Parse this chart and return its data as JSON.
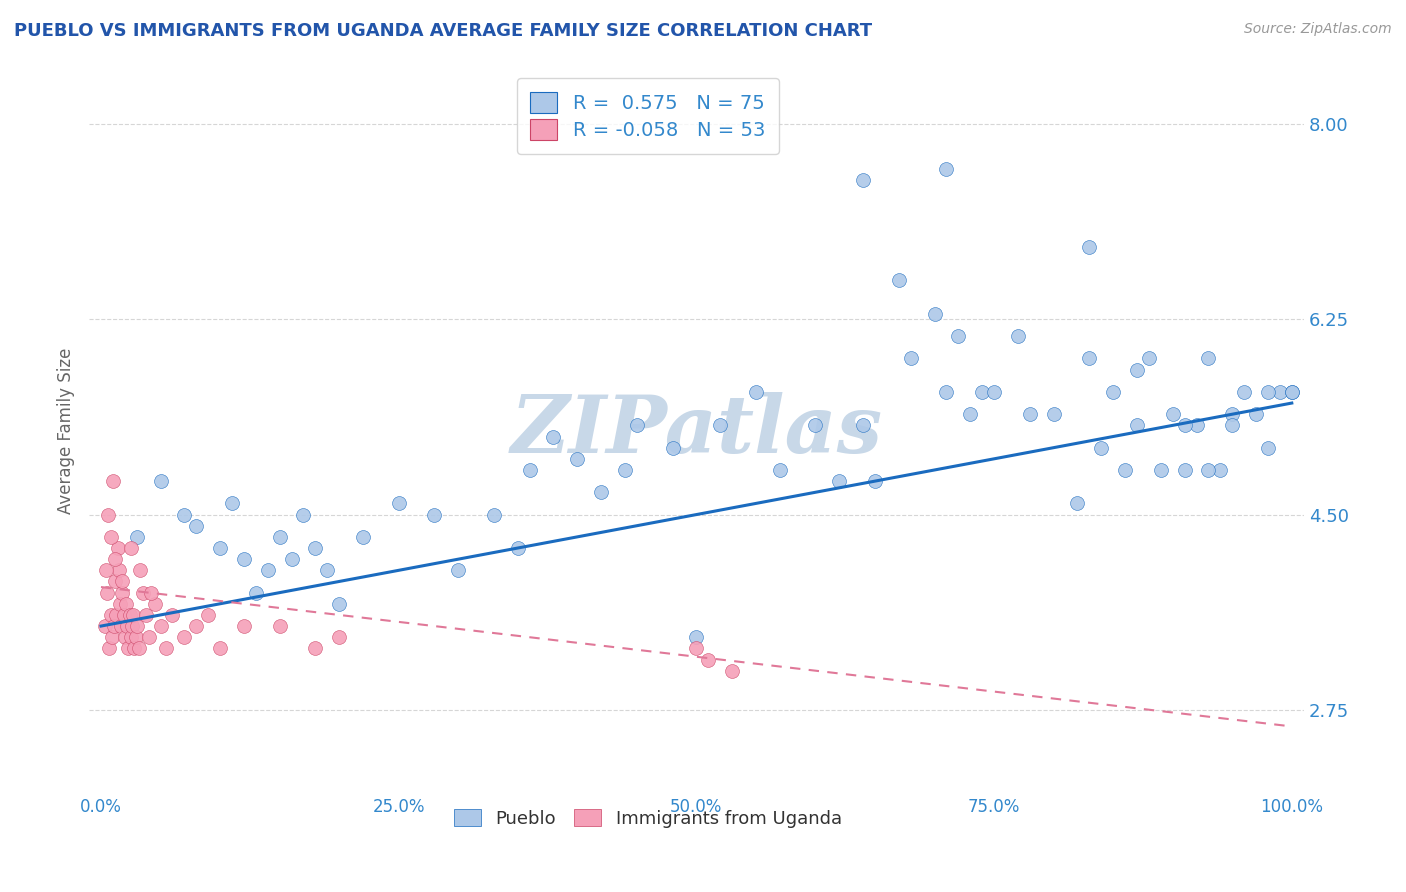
{
  "title": "PUEBLO VS IMMIGRANTS FROM UGANDA AVERAGE FAMILY SIZE CORRELATION CHART",
  "source": "Source: ZipAtlas.com",
  "ylabel": "Average Family Size",
  "xlim": [
    -1,
    101
  ],
  "ylim": [
    2.0,
    8.5
  ],
  "yticks": [
    2.75,
    4.5,
    6.25,
    8.0
  ],
  "ytick_labels": [
    "2.75",
    "4.50",
    "6.25",
    "8.00"
  ],
  "xticks": [
    0,
    25,
    50,
    75,
    100
  ],
  "xtick_labels": [
    "0.0%",
    "25.0%",
    "50.0%",
    "75.0%",
    "100.0%"
  ],
  "pueblo_color": "#adc8e8",
  "uganda_color": "#f5a0b8",
  "trend1_color": "#1a6bbf",
  "trend2_color": "#e07898",
  "background_color": "#ffffff",
  "watermark": "ZIPatlas",
  "watermark_color": "#c8d8e8",
  "title_color": "#2255aa",
  "axis_label_color": "#666666",
  "tick_color": "#3388cc",
  "source_color": "#999999",
  "pueblo_x": [
    3,
    5,
    7,
    8,
    10,
    11,
    12,
    13,
    14,
    15,
    16,
    17,
    18,
    19,
    20,
    22,
    25,
    28,
    30,
    33,
    35,
    36,
    38,
    40,
    42,
    44,
    45,
    48,
    50,
    52,
    55,
    57,
    60,
    62,
    64,
    65,
    67,
    68,
    70,
    71,
    72,
    73,
    74,
    75,
    77,
    78,
    80,
    82,
    83,
    84,
    85,
    86,
    87,
    88,
    89,
    90,
    91,
    92,
    93,
    94,
    95,
    96,
    97,
    98,
    99,
    100,
    64,
    71,
    83,
    87,
    91,
    93,
    95,
    98,
    100
  ],
  "pueblo_y": [
    4.3,
    4.8,
    4.5,
    4.4,
    4.2,
    4.6,
    4.1,
    3.8,
    4.0,
    4.3,
    4.1,
    4.5,
    4.2,
    4.0,
    3.7,
    4.3,
    4.6,
    4.5,
    4.0,
    4.5,
    4.2,
    4.9,
    5.2,
    5.0,
    4.7,
    4.9,
    5.3,
    5.1,
    3.4,
    5.3,
    5.6,
    4.9,
    5.3,
    4.8,
    5.3,
    4.8,
    6.6,
    5.9,
    6.3,
    5.6,
    6.1,
    5.4,
    5.6,
    5.6,
    6.1,
    5.4,
    5.4,
    4.6,
    5.9,
    5.1,
    5.6,
    4.9,
    5.3,
    5.9,
    4.9,
    5.4,
    4.9,
    5.3,
    5.9,
    4.9,
    5.4,
    5.6,
    5.4,
    5.1,
    5.6,
    5.6,
    7.5,
    7.6,
    6.9,
    5.8,
    5.3,
    4.9,
    5.3,
    5.6,
    5.6
  ],
  "uganda_x": [
    0.3,
    0.5,
    0.6,
    0.7,
    0.8,
    0.9,
    1.0,
    1.1,
    1.2,
    1.3,
    1.4,
    1.5,
    1.6,
    1.7,
    1.8,
    1.9,
    2.0,
    2.1,
    2.2,
    2.3,
    2.4,
    2.5,
    2.6,
    2.7,
    2.8,
    2.9,
    3.0,
    3.2,
    3.5,
    3.8,
    4.0,
    4.5,
    5.0,
    5.5,
    6.0,
    7.0,
    8.0,
    9.0,
    10.0,
    12.0,
    15.0,
    18.0,
    20.0,
    0.4,
    0.8,
    1.2,
    1.8,
    2.5,
    3.3,
    4.2,
    50.0,
    51.0,
    53.0
  ],
  "uganda_y": [
    3.5,
    3.8,
    4.5,
    3.3,
    3.6,
    3.4,
    4.8,
    3.5,
    3.9,
    3.6,
    4.2,
    4.0,
    3.7,
    3.5,
    3.8,
    3.6,
    3.4,
    3.7,
    3.5,
    3.3,
    3.6,
    3.4,
    3.5,
    3.6,
    3.3,
    3.4,
    3.5,
    3.3,
    3.8,
    3.6,
    3.4,
    3.7,
    3.5,
    3.3,
    3.6,
    3.4,
    3.5,
    3.6,
    3.3,
    3.5,
    3.5,
    3.3,
    3.4,
    4.0,
    4.3,
    4.1,
    3.9,
    4.2,
    4.0,
    3.8,
    3.3,
    3.2,
    3.1
  ],
  "trend1_x0": 0,
  "trend1_y0": 3.5,
  "trend1_x1": 100,
  "trend1_y1": 5.5,
  "trend2_x0": 0,
  "trend2_y0": 3.85,
  "trend2_x1": 100,
  "trend2_y1": 2.6
}
